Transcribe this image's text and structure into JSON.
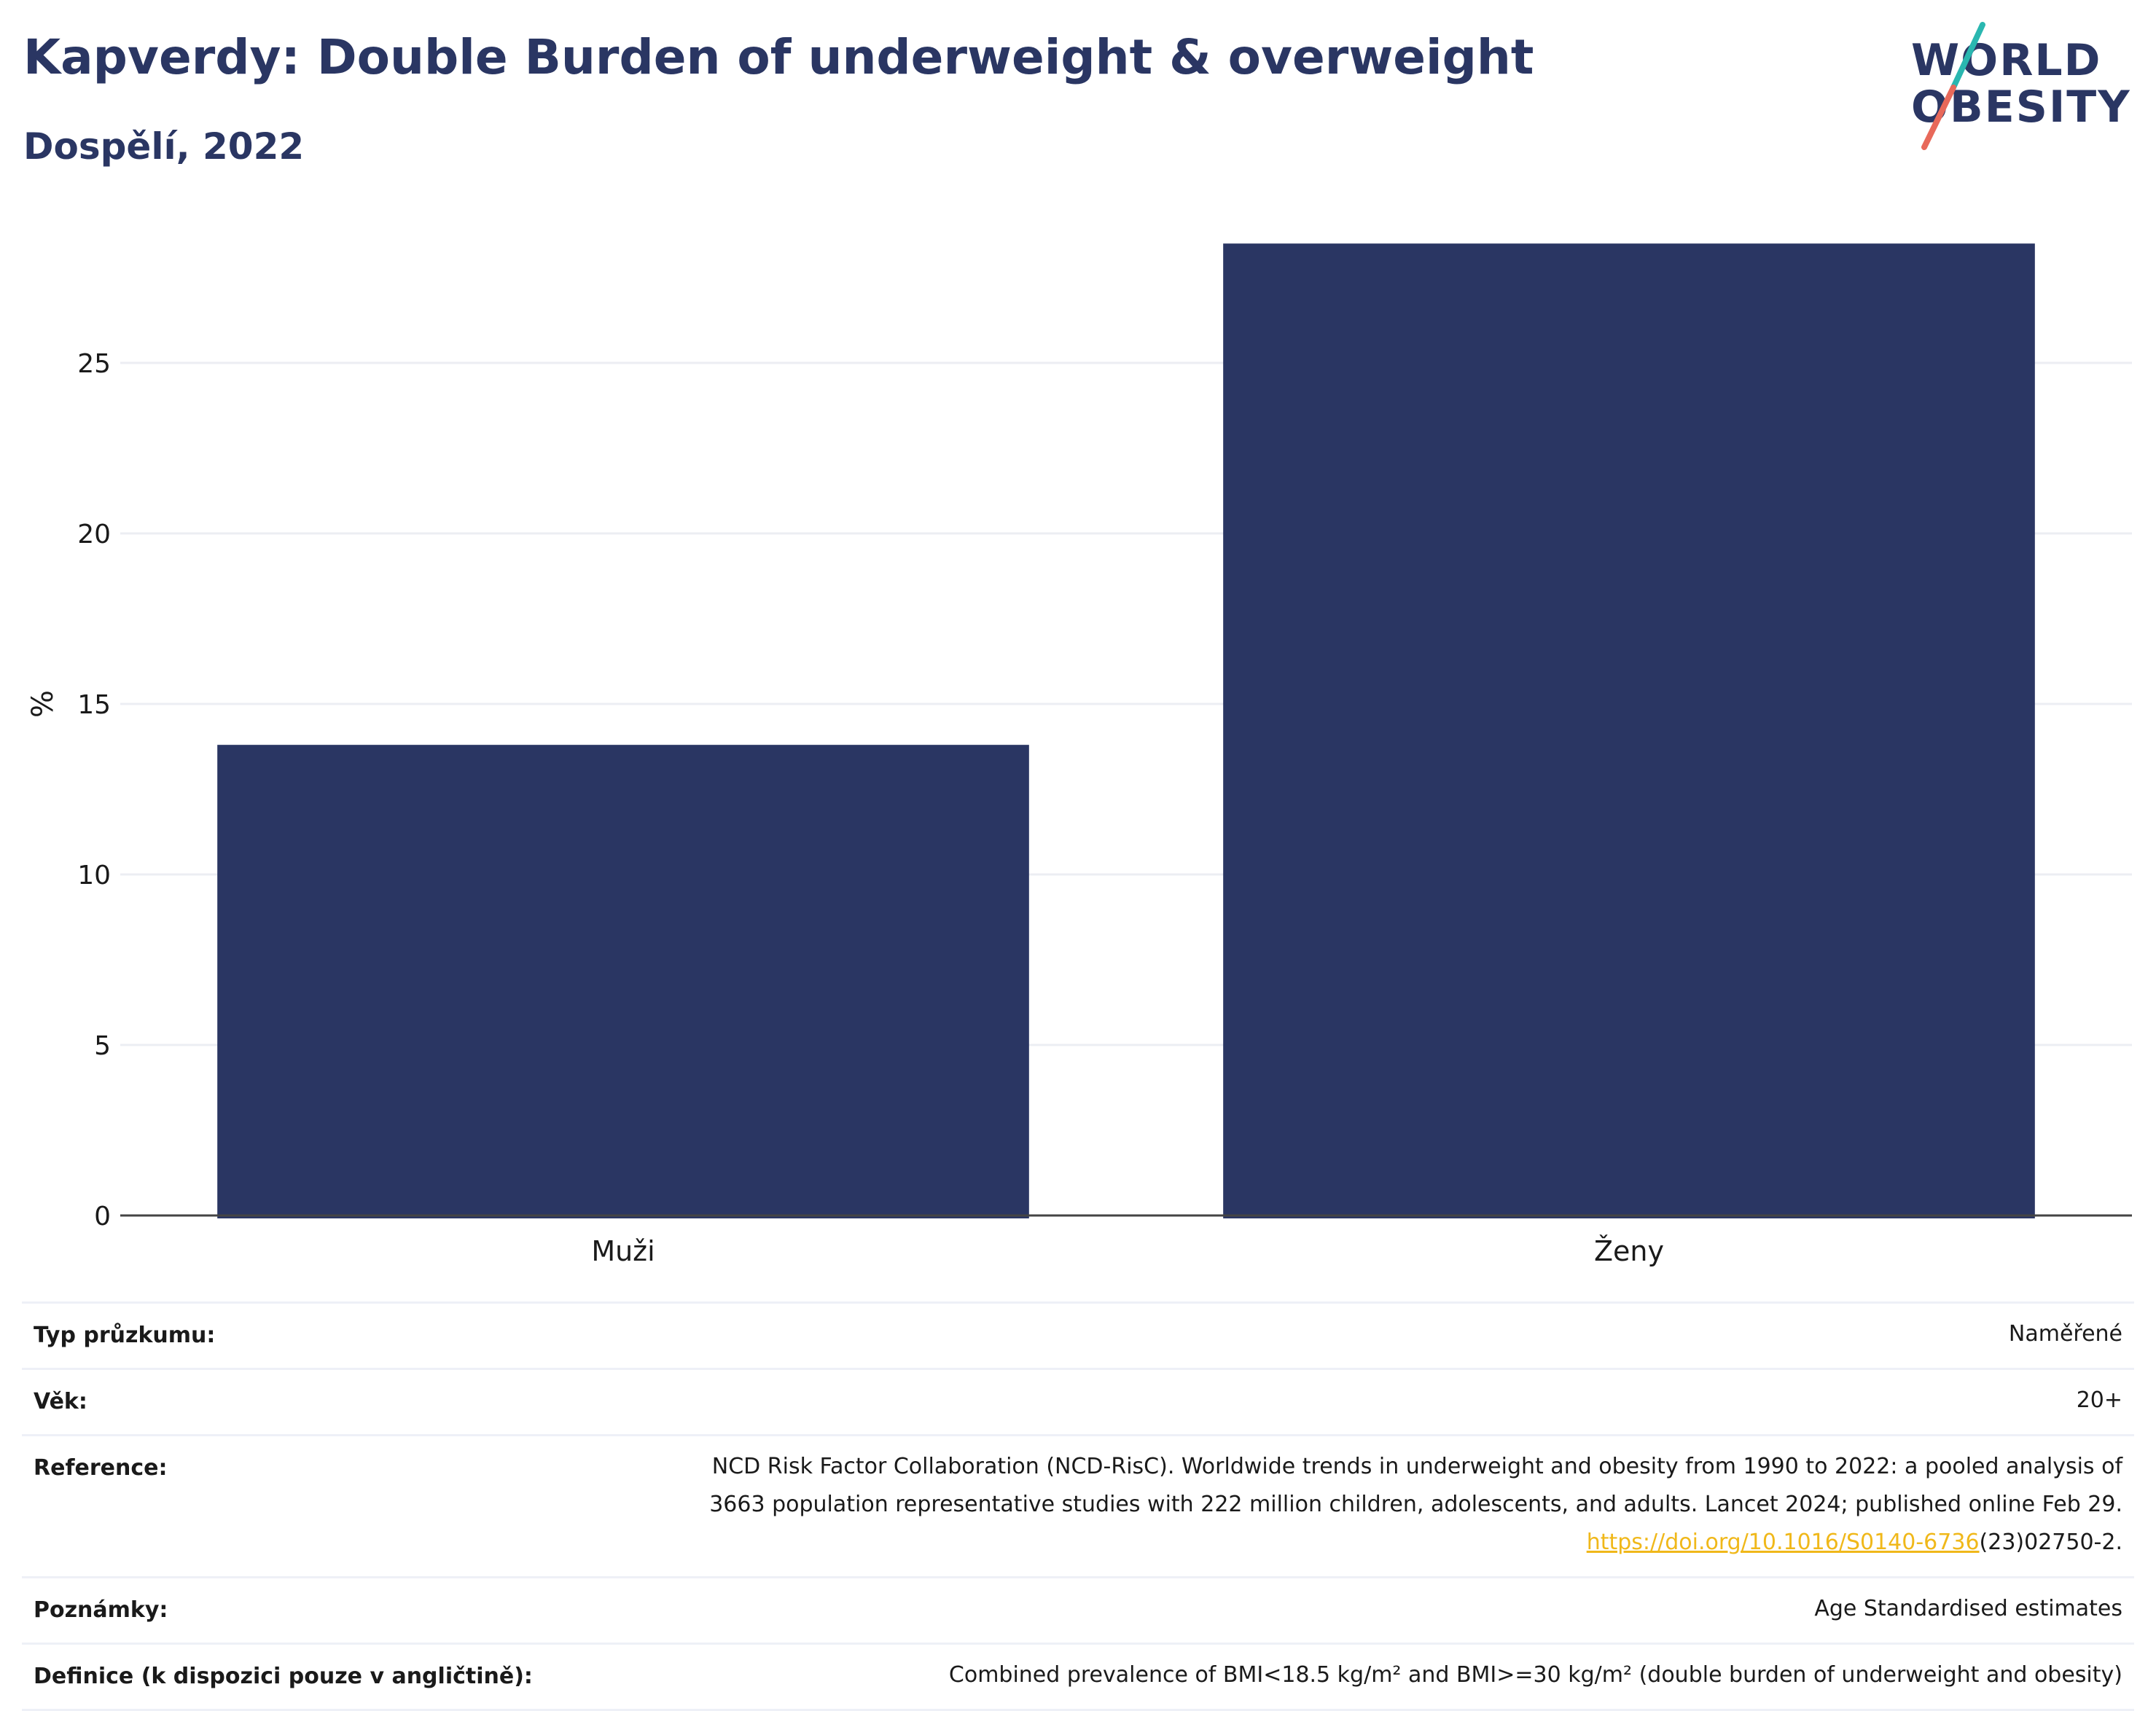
{
  "header": {
    "title": "Kapverdy: Double Burden of underweight & overweight",
    "subtitle": "Dospělí, 2022"
  },
  "logo": {
    "line1": "WORLD",
    "line2": "OBESITY",
    "colors": {
      "text": "#2a3663",
      "slash_top": "#2ab7b0",
      "slash_bottom": "#e8695a"
    }
  },
  "chart_data": {
    "type": "bar",
    "categories": [
      "Muži",
      "Ženy"
    ],
    "values": [
      13.8,
      28.5
    ],
    "title": "",
    "xlabel": "",
    "ylabel": "%",
    "ylim": [
      0,
      30
    ],
    "yticks": [
      0,
      5,
      10,
      15,
      20,
      25
    ],
    "grid": true,
    "bar_color": "#2a3663"
  },
  "info": {
    "rows": [
      {
        "label": "Typ průzkumu:",
        "value": "Naměřené"
      },
      {
        "label": "Věk:",
        "value": "20+"
      },
      {
        "label": "Reference:",
        "value_line1": "NCD Risk Factor Collaboration (NCD-RisC). Worldwide trends in underweight and obesity from 1990 to 2022: a pooled analysis of",
        "value_line2": "3663 population representative studies with 222 million children, adolescents, and adults. Lancet 2024; published online Feb 29.",
        "link": "https://doi.org/10.1016/S0140-6736",
        "link_suffix": "(23)02750-2."
      },
      {
        "label": "Poznámky:",
        "value": "Age Standardised estimates"
      },
      {
        "label": "Definice (k dispozici pouze v angličtině):",
        "value": "Combined prevalence of BMI<18.5 kg/m² and BMI>=30 kg/m² (double burden of underweight and obesity)"
      }
    ]
  }
}
